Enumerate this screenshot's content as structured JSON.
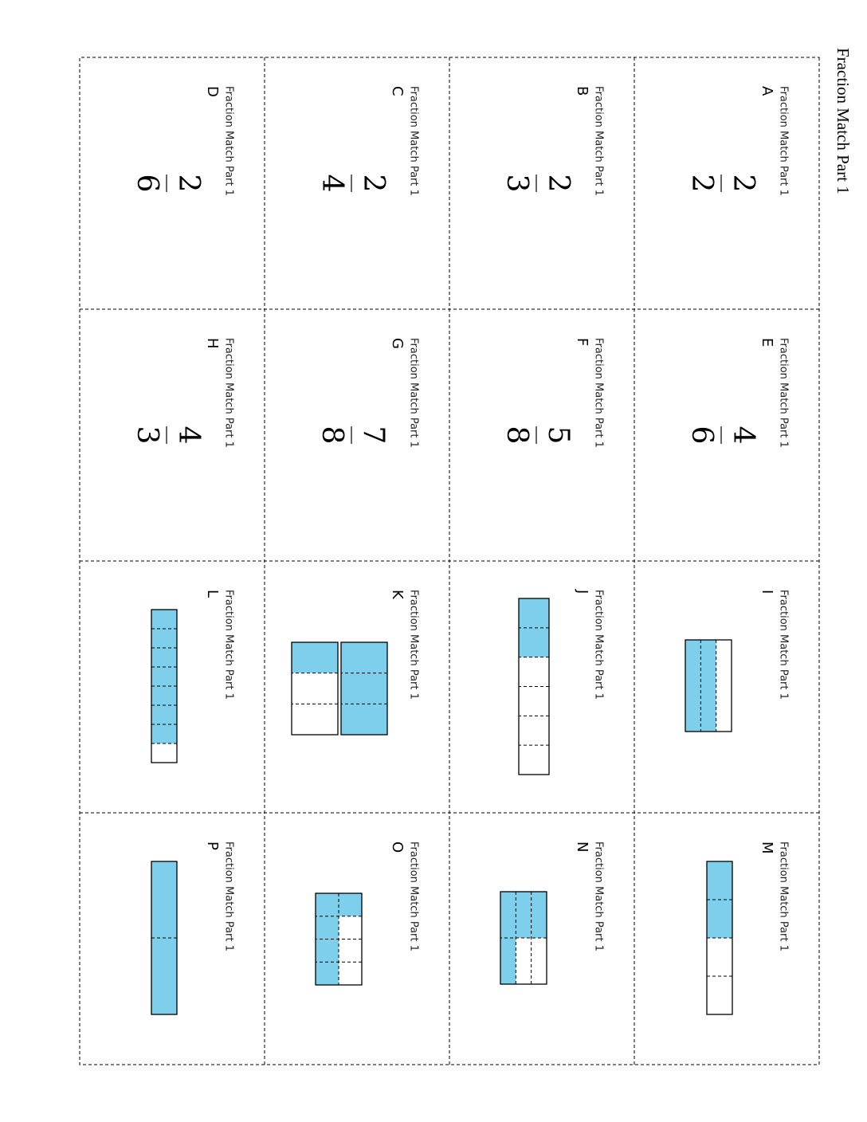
{
  "title": "Fraction Match Part 1",
  "cards": [
    {
      "label": "Fraction Match Part 1",
      "letter": "A",
      "numerator": 2,
      "denominator": 2
    },
    {
      "label": "Fraction Match Part 1",
      "letter": "B",
      "numerator": 2,
      "denominator": 3
    },
    {
      "label": "Fraction Match Part 1",
      "letter": "C",
      "numerator": 2,
      "denominator": 4
    },
    {
      "label": "Fraction Match Part 1",
      "letter": "D",
      "numerator": 2,
      "denominator": 6
    },
    {
      "label": "Fraction Match Part 1",
      "letter": "E",
      "numerator": 4,
      "denominator": 6
    },
    {
      "label": "Fraction Match Part 1",
      "letter": "F",
      "numerator": 5,
      "denominator": 8
    },
    {
      "label": "Fraction Match Part 1",
      "letter": "G",
      "numerator": 7,
      "denominator": 8
    },
    {
      "label": "Fraction Match Part 1",
      "letter": "H",
      "numerator": 4,
      "denominator": 3
    },
    {
      "label": "Fraction Match Part 1",
      "letter": "I"
    },
    {
      "label": "Fraction Match Part 1",
      "letter": "J"
    },
    {
      "label": "Fraction Match Part 1",
      "letter": "K"
    },
    {
      "label": "Fraction Match Part 1",
      "letter": "L"
    },
    {
      "label": "Fraction Match Part 1",
      "letter": "M"
    },
    {
      "label": "Fraction Match Part 1",
      "letter": "N"
    },
    {
      "label": "Fraction Match Part 1",
      "letter": "O"
    },
    {
      "label": "Fraction Match Part 1",
      "letter": "P"
    }
  ]
}
